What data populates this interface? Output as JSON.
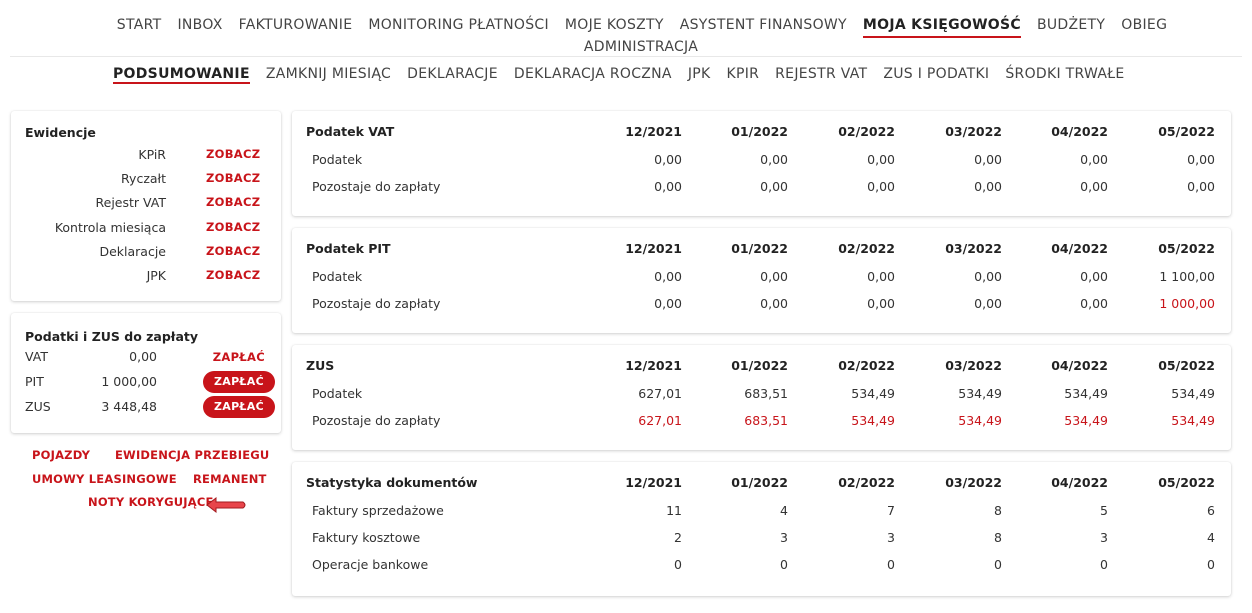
{
  "nav": {
    "items": [
      "START",
      "INBOX",
      "FAKTUROWANIE",
      "MONITORING PŁATNOŚCI",
      "MOJE KOSZTY",
      "ASYSTENT FINANSOWY",
      "MOJA KSIĘGOWOŚĆ",
      "BUDŻETY",
      "OBIEG"
    ],
    "second_row": "ADMINISTRACJA",
    "active": "MOJA KSIĘGOWOŚĆ"
  },
  "subnav": {
    "items": [
      "PODSUMOWANIE",
      "ZAMKNIJ MIESIĄC",
      "DEKLARACJE",
      "DEKLARACJA ROCZNA",
      "JPK",
      "KPIR",
      "REJESTR VAT",
      "ZUS I PODATKI",
      "ŚRODKI TRWAŁE"
    ],
    "active": "PODSUMOWANIE"
  },
  "ewidencje": {
    "title": "Ewidencje",
    "link_label": "ZOBACZ",
    "rows": [
      "KPiR",
      "Ryczałt",
      "Rejestr VAT",
      "Kontrola miesiąca",
      "Deklaracje",
      "JPK"
    ]
  },
  "podatki": {
    "title": "Podatki i ZUS do zapłaty",
    "pay_label": "ZAPŁAĆ",
    "rows": [
      {
        "name": "VAT",
        "amount": "0,00",
        "button": false
      },
      {
        "name": "PIT",
        "amount": "1 000,00",
        "button": true
      },
      {
        "name": "ZUS",
        "amount": "3 448,48",
        "button": true
      }
    ]
  },
  "bottom_links": {
    "pojazdy": "POJAZDY",
    "ewidencja_przebiegu": "EWIDENCJA PRZEBIEGU",
    "umowy_leasingowe": "UMOWY LEASINGOWE",
    "remanent": "REMANENT",
    "noty_korygujace": "NOTY KORYGUJĄCE"
  },
  "months": [
    "12/2021",
    "01/2022",
    "02/2022",
    "03/2022",
    "04/2022",
    "05/2022"
  ],
  "sections": [
    {
      "title": "Podatek VAT",
      "rows": [
        {
          "label": "Podatek",
          "values": [
            "0,00",
            "0,00",
            "0,00",
            "0,00",
            "0,00",
            "0,00"
          ],
          "red": [
            false,
            false,
            false,
            false,
            false,
            false
          ]
        },
        {
          "label": "Pozostaje do zapłaty",
          "values": [
            "0,00",
            "0,00",
            "0,00",
            "0,00",
            "0,00",
            "0,00"
          ],
          "red": [
            false,
            false,
            false,
            false,
            false,
            false
          ]
        }
      ]
    },
    {
      "title": "Podatek PIT",
      "rows": [
        {
          "label": "Podatek",
          "values": [
            "0,00",
            "0,00",
            "0,00",
            "0,00",
            "0,00",
            "1 100,00"
          ],
          "red": [
            false,
            false,
            false,
            false,
            false,
            false
          ]
        },
        {
          "label": "Pozostaje do zapłaty",
          "values": [
            "0,00",
            "0,00",
            "0,00",
            "0,00",
            "0,00",
            "1 000,00"
          ],
          "red": [
            false,
            false,
            false,
            false,
            false,
            true
          ]
        }
      ]
    },
    {
      "title": "ZUS",
      "rows": [
        {
          "label": "Podatek",
          "values": [
            "627,01",
            "683,51",
            "534,49",
            "534,49",
            "534,49",
            "534,49"
          ],
          "red": [
            false,
            false,
            false,
            false,
            false,
            false
          ]
        },
        {
          "label": "Pozostaje do zapłaty",
          "values": [
            "627,01",
            "683,51",
            "534,49",
            "534,49",
            "534,49",
            "534,49"
          ],
          "red": [
            true,
            true,
            true,
            true,
            true,
            true
          ]
        }
      ]
    },
    {
      "title": "Statystyka dokumentów",
      "rows": [
        {
          "label": "Faktury sprzedażowe",
          "values": [
            "11",
            "4",
            "7",
            "8",
            "5",
            "6"
          ],
          "red": [
            false,
            false,
            false,
            false,
            false,
            false
          ]
        },
        {
          "label": "Faktury kosztowe",
          "values": [
            "2",
            "3",
            "3",
            "8",
            "3",
            "4"
          ],
          "red": [
            false,
            false,
            false,
            false,
            false,
            false
          ]
        },
        {
          "label": "Operacje bankowe",
          "values": [
            "0",
            "0",
            "0",
            "0",
            "0",
            "0"
          ],
          "red": [
            false,
            false,
            false,
            false,
            false,
            false
          ]
        }
      ]
    }
  ],
  "colors": {
    "accent": "#c8141a",
    "text": "#333333"
  }
}
